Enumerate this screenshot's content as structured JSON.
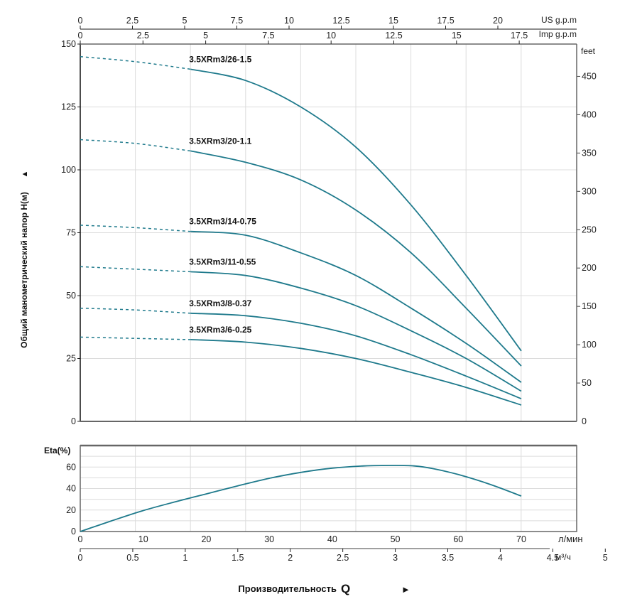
{
  "chart_data": [
    {
      "type": "line",
      "title": "",
      "xlabel": "Производительность Q",
      "ylabel": "Общий манометрический напор Н(м)",
      "x_unit": "л/мин",
      "xlim": [
        0,
        70
      ],
      "ylim": [
        0,
        150
      ],
      "y_ticks": [
        0,
        25,
        50,
        75,
        100,
        125,
        150
      ],
      "right_axis": {
        "label": "feet",
        "ticks": [
          0,
          50,
          100,
          150,
          200,
          250,
          300,
          350,
          400,
          450
        ]
      },
      "top_axis_us": {
        "label": "US g.p.m",
        "ticks": [
          "0",
          "2.5",
          "5",
          "7.5",
          "10",
          "12.5",
          "15",
          "17.5",
          "20"
        ]
      },
      "top_axis_imp": {
        "label": "Imp g.p.m",
        "ticks": [
          "0",
          "2.5",
          "5",
          "7.5",
          "10",
          "12.5",
          "15",
          "17.5"
        ]
      },
      "grid": true,
      "dashed_until_x": 17.5,
      "x": [
        0,
        8.75,
        17.5,
        26.25,
        35,
        43.75,
        52.5,
        61.25,
        70
      ],
      "series": [
        {
          "name": "3.5XRm3/26-1.5",
          "values": [
            145,
            143,
            140,
            135.5,
            125,
            109,
            86,
            58,
            28
          ]
        },
        {
          "name": "3.5XRm3/20-1.1",
          "values": [
            112,
            110.5,
            107.5,
            103,
            96,
            84,
            67,
            45,
            22
          ]
        },
        {
          "name": "3.5XRm3/14-0.75",
          "values": [
            78,
            77,
            75.5,
            74,
            67,
            58,
            45,
            31,
            15.5
          ]
        },
        {
          "name": "3.5XRm3/11-0.55",
          "values": [
            61.5,
            60.5,
            59.5,
            58,
            53,
            46,
            36,
            25,
            12
          ]
        },
        {
          "name": "3.5XRm3/8-0.37",
          "values": [
            45,
            44.3,
            43,
            42,
            39,
            34,
            26.5,
            18,
            9
          ]
        },
        {
          "name": "3.5XRm3/6-0.25",
          "values": [
            33.5,
            33,
            32.5,
            31.5,
            29,
            25,
            19.5,
            13.5,
            6.5
          ]
        }
      ]
    },
    {
      "type": "line",
      "title": "Eta(%)",
      "ylabel": "Eta(%)",
      "xlim": [
        0,
        70
      ],
      "ylim": [
        0,
        80
      ],
      "y_ticks": [
        0,
        20,
        40,
        60
      ],
      "x_ticks_lmin": [
        "0",
        "10",
        "20",
        "30",
        "40",
        "50",
        "60",
        "70"
      ],
      "x_unit_lmin": "л/мин",
      "x_ticks_m3h": [
        "0",
        "0.5",
        "1",
        "1.5",
        "2",
        "2.5",
        "3",
        "3.5",
        "4",
        "4.5",
        "5"
      ],
      "x_unit_m3h": "м³/ч",
      "grid": true,
      "series": [
        {
          "name": "Eta",
          "x": [
            0,
            5,
            10,
            15,
            20,
            25,
            30,
            35,
            40,
            45,
            50,
            53,
            56,
            60,
            65,
            70
          ],
          "values": [
            0,
            10,
            19.5,
            27.5,
            35,
            42.5,
            49.5,
            55,
            59,
            61,
            61.5,
            61,
            58.5,
            53,
            44,
            33
          ]
        }
      ]
    }
  ],
  "labels": {
    "y_axis_title": "Общий манометрический напор Н(м)",
    "y_arrow": "▲",
    "x_axis_title": "Производительность",
    "x_axis_q": "Q",
    "x_arrow": "►",
    "feet": "feet",
    "us_gpm": "US g.p.m",
    "imp_gpm": "Imp g.p.m",
    "eta": "Eta(%)",
    "lmin": "л/мин",
    "m3h": "м³/ч"
  },
  "colors": {
    "curve": "#1f7a8c",
    "grid": "#dcdcdc",
    "axis": "#666666"
  }
}
